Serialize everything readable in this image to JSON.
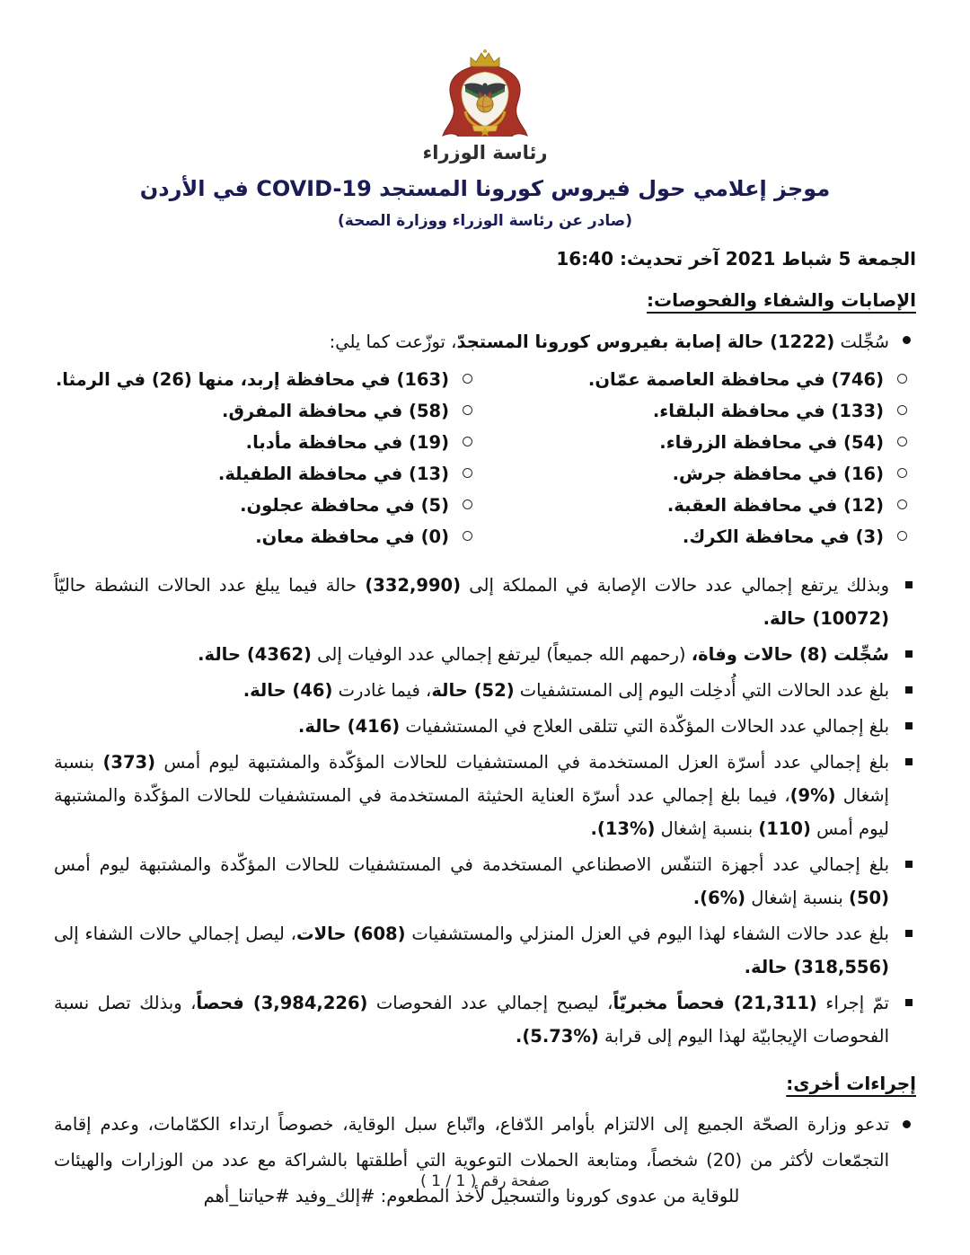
{
  "colors": {
    "title_navy": "#1b1c55",
    "crest_red": "#a93226",
    "crest_gold": "#c9a227"
  },
  "logo": {
    "icon": "jordan-coat-of-arms",
    "caption": "رئاسة الوزراء"
  },
  "header": {
    "title": "موجز إعلامي حول فيروس كورونا المستجد COVID-19 في الأردن",
    "subtitle": "(صادر عن رئاسة الوزراء ووزارة الصحة)",
    "date_line": "الجمعة 5 شباط 2021 آخر تحديث: 16:40"
  },
  "sections": {
    "infections": {
      "heading": "الإصابات والشفاء والفحوصات:",
      "intro_segments": [
        {
          "t": "سُجِّلت ",
          "b": false
        },
        {
          "t": "(1222) حالة إصابة بفيروس كورونا المستجدّ",
          "b": true
        },
        {
          "t": "، توزّعت كما يلي:",
          "b": false
        }
      ],
      "governorates_col_right": [
        "(746) في محافظة العاصمة عمّان.",
        "(133) في محافظة البلقاء.",
        "(54) في محافظة الزرقاء.",
        "(16) في محافظة جرش.",
        "(12) في محافظة العقبة.",
        "(3) في محافظة الكرك."
      ],
      "governorates_col_left": [
        "(163) في محافظة إربد، منها (26) في الرمثا.",
        "(58) في محافظة المفرق.",
        "(19) في محافظة مأدبا.",
        "(13) في محافظة الطفيلة.",
        "(5) في محافظة عجلون.",
        "(0) في محافظة معان."
      ],
      "bullets": [
        {
          "segments": [
            {
              "t": "وبذلك يرتفع إجمالي عدد حالات الإصابة في المملكة إلى ",
              "b": false
            },
            {
              "t": "(332,990)",
              "b": true
            },
            {
              "t": " حالة فيما يبلغ عدد الحالات النشطة حاليّاً ",
              "b": false
            },
            {
              "t": "(10072) حالة.",
              "b": true
            }
          ]
        },
        {
          "segments": [
            {
              "t": "سُجِّلت (8) حالات وفاة،",
              "b": true
            },
            {
              "t": " (رحمهم الله جميعاً) ليرتفع إجمالي عدد الوفيات إلى ",
              "b": false
            },
            {
              "t": "(4362) حالة.",
              "b": true
            }
          ]
        },
        {
          "segments": [
            {
              "t": "بلغ عدد الحالات التي أُدخِلت اليوم إلى المستشفيات ",
              "b": false
            },
            {
              "t": "(52) حالة",
              "b": true
            },
            {
              "t": "، فيما غادرت ",
              "b": false
            },
            {
              "t": "(46) حالة.",
              "b": true
            }
          ]
        },
        {
          "segments": [
            {
              "t": "بلغ إجمالي عدد الحالات المؤكّدة التي تتلقى العلاج في المستشفيات ",
              "b": false
            },
            {
              "t": "(416) حالة.",
              "b": true
            }
          ]
        },
        {
          "segments": [
            {
              "t": "بلغ إجمالي عدد أسرّة العزل المستخدمة في المستشفيات للحالات المؤكّدة والمشتبهة ليوم أمس ",
              "b": false
            },
            {
              "t": "(373)",
              "b": true
            },
            {
              "t": " بنسبة إشغال ",
              "b": false
            },
            {
              "t": "(%9)",
              "b": true
            },
            {
              "t": "، فيما بلغ إجمالي عدد أسرّة العناية الحثيثة المستخدمة في المستشفيات للحالات المؤكّدة والمشتبهة ليوم أمس ",
              "b": false
            },
            {
              "t": "(110)",
              "b": true
            },
            {
              "t": " بنسبة إشغال ",
              "b": false
            },
            {
              "t": "(%13).",
              "b": true
            }
          ]
        },
        {
          "segments": [
            {
              "t": "بلغ إجمالي عدد أجهزة التنفّس الاصطناعي المستخدمة في المستشفيات للحالات المؤكّدة والمشتبهة ليوم أمس ",
              "b": false
            },
            {
              "t": "(50)",
              "b": true
            },
            {
              "t": " بنسبة إشغال ",
              "b": false
            },
            {
              "t": "(%6).",
              "b": true
            }
          ]
        },
        {
          "segments": [
            {
              "t": "بلغ عدد حالات الشفاء لهذا اليوم في العزل المنزلي والمستشفيات ",
              "b": false
            },
            {
              "t": "(608) حالات",
              "b": true
            },
            {
              "t": "، ليصل إجمالي حالات الشفاء إلى ",
              "b": false
            },
            {
              "t": "(318,556) حالة.",
              "b": true
            }
          ]
        },
        {
          "segments": [
            {
              "t": "تمّ إجراء ",
              "b": false
            },
            {
              "t": "(21,311) فحصاً مخبريّاً",
              "b": true
            },
            {
              "t": "، ليصبح إجمالي عدد الفحوصات ",
              "b": false
            },
            {
              "t": "(3,984,226) فحصاً",
              "b": true
            },
            {
              "t": "، وبذلك تصل نسبة الفحوصات الإيجابيّة لهذا اليوم إلى قرابة ",
              "b": false
            },
            {
              "t": "(%5.73).",
              "b": true
            }
          ]
        }
      ]
    },
    "measures": {
      "heading": "إجراءات أخرى:",
      "bullets": [
        {
          "segments": [
            {
              "t": "تدعو وزارة الصحّة الجميع إلى الالتزام بأوامر الدّفاع، واتّباع سبل الوقاية، خصوصاً ارتداء الكمّامات، وعدم إقامة التجمّعات لأكثر من (20) شخصاً، ومتابعة الحملات التوعوية التي أطلقتها بالشراكة مع عدد من الوزارات والهيئات للوقاية من عدوى كورونا والتسجيل لأخذ المطعوم: #إلك_وفيد #حياتنا_أهم",
              "b": false
            }
          ]
        }
      ]
    }
  },
  "footer": {
    "page_label": "صفحة رقم ( 1 / 1 )"
  }
}
